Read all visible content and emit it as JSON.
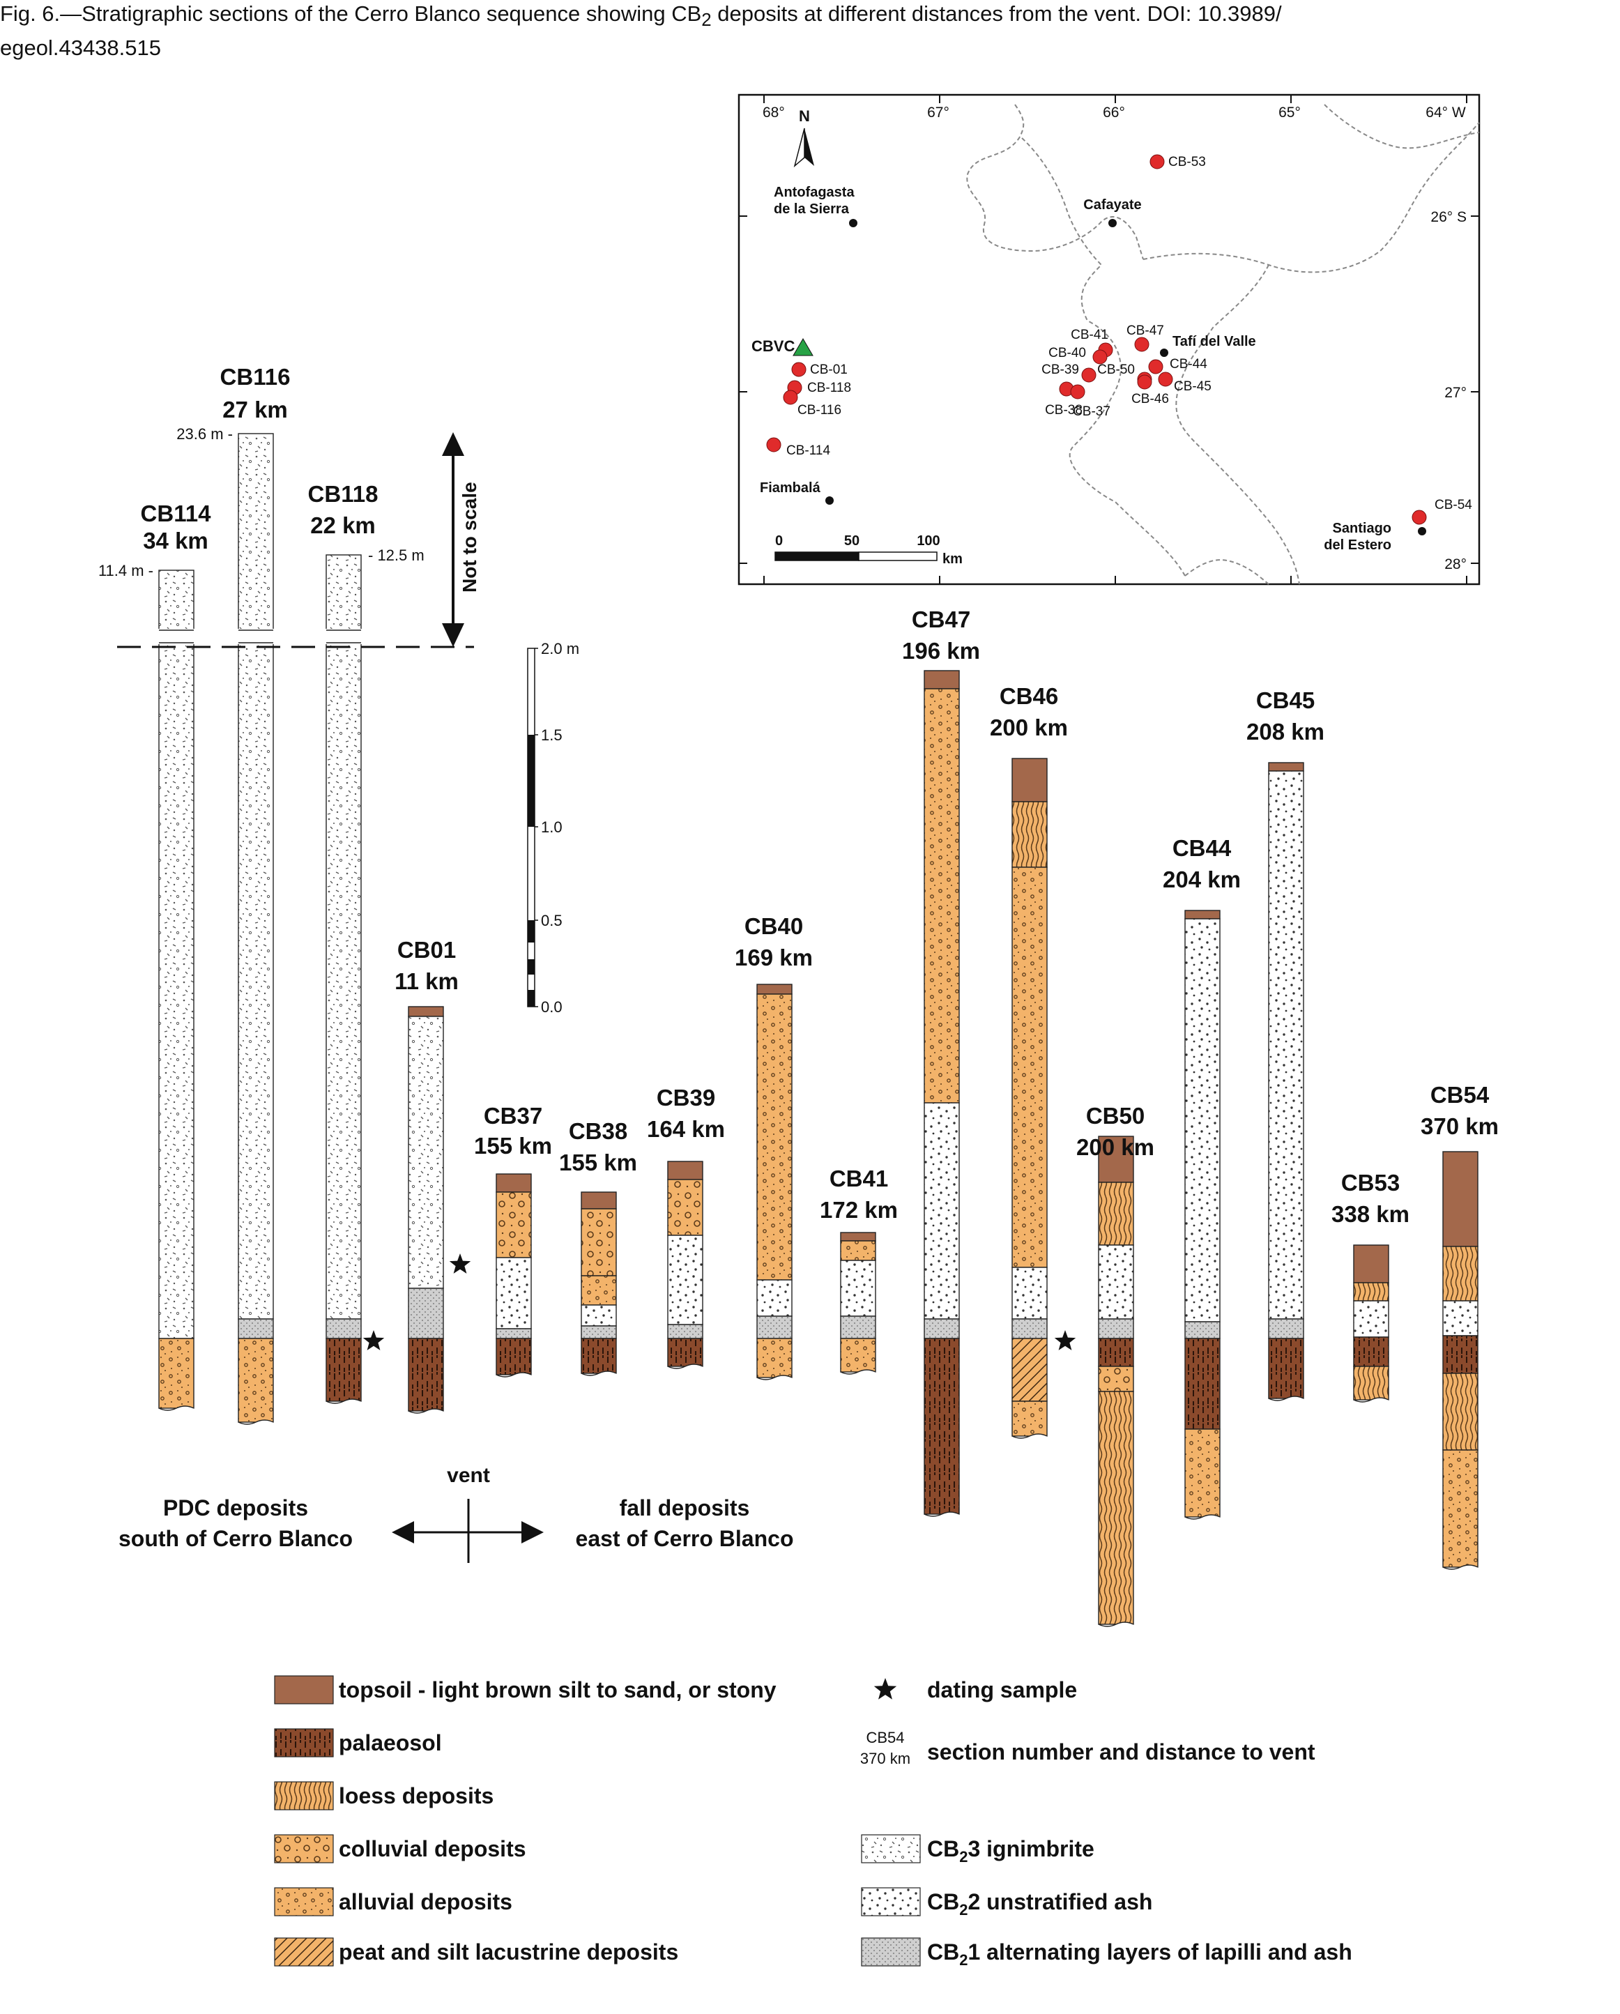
{
  "caption_pre": "Fig. 6.—Stratigraphic sections of the Cerro Blanco sequence showing CB",
  "caption_sub": "2",
  "caption_post": " deposits at different distances from the vent. DOI: 10.3989/",
  "caption_line2": "egeol.43438.515",
  "colors": {
    "topsoil": "#a3684b",
    "palaeosol": "#8b4a2c",
    "orange": "#f3b36a",
    "cb1": "#cfcfcf",
    "red_site": "#e02b2b",
    "vent": "#27a245"
  },
  "sections": [
    {
      "id": "CB114",
      "name": "CB114",
      "dist": "34 km",
      "top_label": "11.4 m -"
    },
    {
      "id": "CB116",
      "name": "CB116",
      "dist": "27 km",
      "top_label": "23.6 m -"
    },
    {
      "id": "CB118",
      "name": "CB118",
      "dist": "22 km",
      "top_label": "- 12.5 m"
    },
    {
      "id": "CB01",
      "name": "CB01",
      "dist": "11 km"
    },
    {
      "id": "CB37",
      "name": "CB37",
      "dist": "155 km"
    },
    {
      "id": "CB38",
      "name": "CB38",
      "dist": "155 km"
    },
    {
      "id": "CB39",
      "name": "CB39",
      "dist": "164 km"
    },
    {
      "id": "CB40",
      "name": "CB40",
      "dist": "169 km"
    },
    {
      "id": "CB41",
      "name": "CB41",
      "dist": "172 km"
    },
    {
      "id": "CB47",
      "name": "CB47",
      "dist": "196 km"
    },
    {
      "id": "CB46",
      "name": "CB46",
      "dist": "200 km"
    },
    {
      "id": "CB50",
      "name": "CB50",
      "dist": "200 km"
    },
    {
      "id": "CB44",
      "name": "CB44",
      "dist": "204 km"
    },
    {
      "id": "CB45",
      "name": "CB45",
      "dist": "208 km"
    },
    {
      "id": "CB53",
      "name": "CB53",
      "dist": "338 km"
    },
    {
      "id": "CB54",
      "name": "CB54",
      "dist": "370 km"
    }
  ],
  "not_to_scale": "Not to scale",
  "scale_labels": [
    "2.0 m",
    "1.5",
    "1.0",
    "0.5",
    "0.0"
  ],
  "vent_label": "vent",
  "pdc_line1": "PDC deposits",
  "pdc_line2": "south of Cerro Blanco",
  "fall_line1": "fall deposits",
  "fall_line2": "east of Cerro Blanco",
  "map": {
    "lon_labels": [
      "68°",
      "67°",
      "66°",
      "65°",
      "64° W"
    ],
    "lat_labels": [
      "26° S",
      "27°",
      "28°"
    ],
    "north": "N",
    "towns": {
      "antofagasta_1": "Antofagasta",
      "antofagasta_2": "de la Sierra",
      "cafayate": "Cafayate",
      "tafi": "Tafí del Valle",
      "fiambala": "Fiambalá",
      "santiago_1": "Santiago",
      "santiago_2": "del Estero"
    },
    "vent": "CBVC",
    "sites": [
      "CB-53",
      "CB-41",
      "CB-47",
      "CB-40",
      "CB-39",
      "CB-50",
      "CB-44",
      "CB-45",
      "CB-46",
      "CB-38",
      "CB-37",
      "CB-01",
      "CB-118",
      "CB-116",
      "CB-114",
      "CB-54"
    ],
    "scale_labels": [
      "0",
      "50",
      "100",
      "km"
    ]
  },
  "legend": {
    "topsoil": "topsoil - light brown silt to sand, or stony",
    "palaeosol": "palaeosol",
    "loess": "loess deposits",
    "colluvial": "colluvial deposits",
    "alluvial": "alluvial deposits",
    "peat": "peat and silt lacustrine deposits",
    "dating": "dating sample",
    "key_name": "CB54",
    "key_dist": "370 km",
    "key_desc": "section number and distance to vent",
    "cb3_pre": "CB",
    "cb3_sub": "2",
    "cb3_post": "3 ignimbrite",
    "cb2_pre": "CB",
    "cb2_sub": "2",
    "cb2_post": "2 unstratified ash",
    "cb1_pre": "CB",
    "cb1_sub": "2",
    "cb1_post": "1 alternating layers of lapilli and ash"
  }
}
